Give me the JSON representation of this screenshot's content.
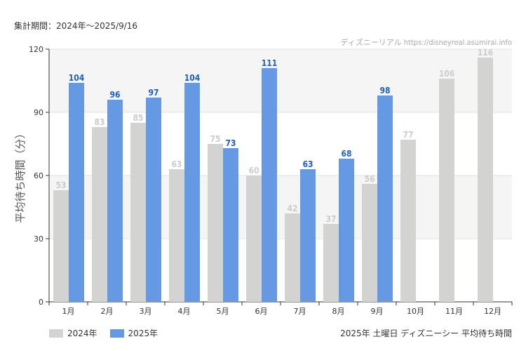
{
  "header": {
    "period": "集計期間：2024年～2025/9/16",
    "watermark": "ディズニーリアル https://disneyreal.asumirai.info"
  },
  "caption": "2025年 土曜日 ディズニーシー 平均待ち時間",
  "colors": {
    "2024": "#d3d3d1",
    "2025": "#6599e4",
    "label2024": "#cccccc",
    "label2025": "#1f5fbf"
  },
  "chart_data": {
    "type": "bar",
    "categories": [
      "1月",
      "2月",
      "3月",
      "4月",
      "5月",
      "6月",
      "7月",
      "8月",
      "9月",
      "10月",
      "11月",
      "12月"
    ],
    "series": [
      {
        "name": "2024年",
        "values": [
          53,
          83,
          85,
          63,
          75,
          60,
          42,
          37,
          56,
          77,
          106,
          116
        ]
      },
      {
        "name": "2025年",
        "values": [
          104,
          96,
          97,
          104,
          73,
          111,
          63,
          68,
          98,
          null,
          null,
          null
        ]
      }
    ],
    "ylabel": "平均待ち時間（分）",
    "ylim": [
      0,
      120
    ],
    "yticks": [
      0,
      30,
      60,
      90,
      120
    ],
    "grid": true,
    "legend_position": "bottom-left"
  }
}
